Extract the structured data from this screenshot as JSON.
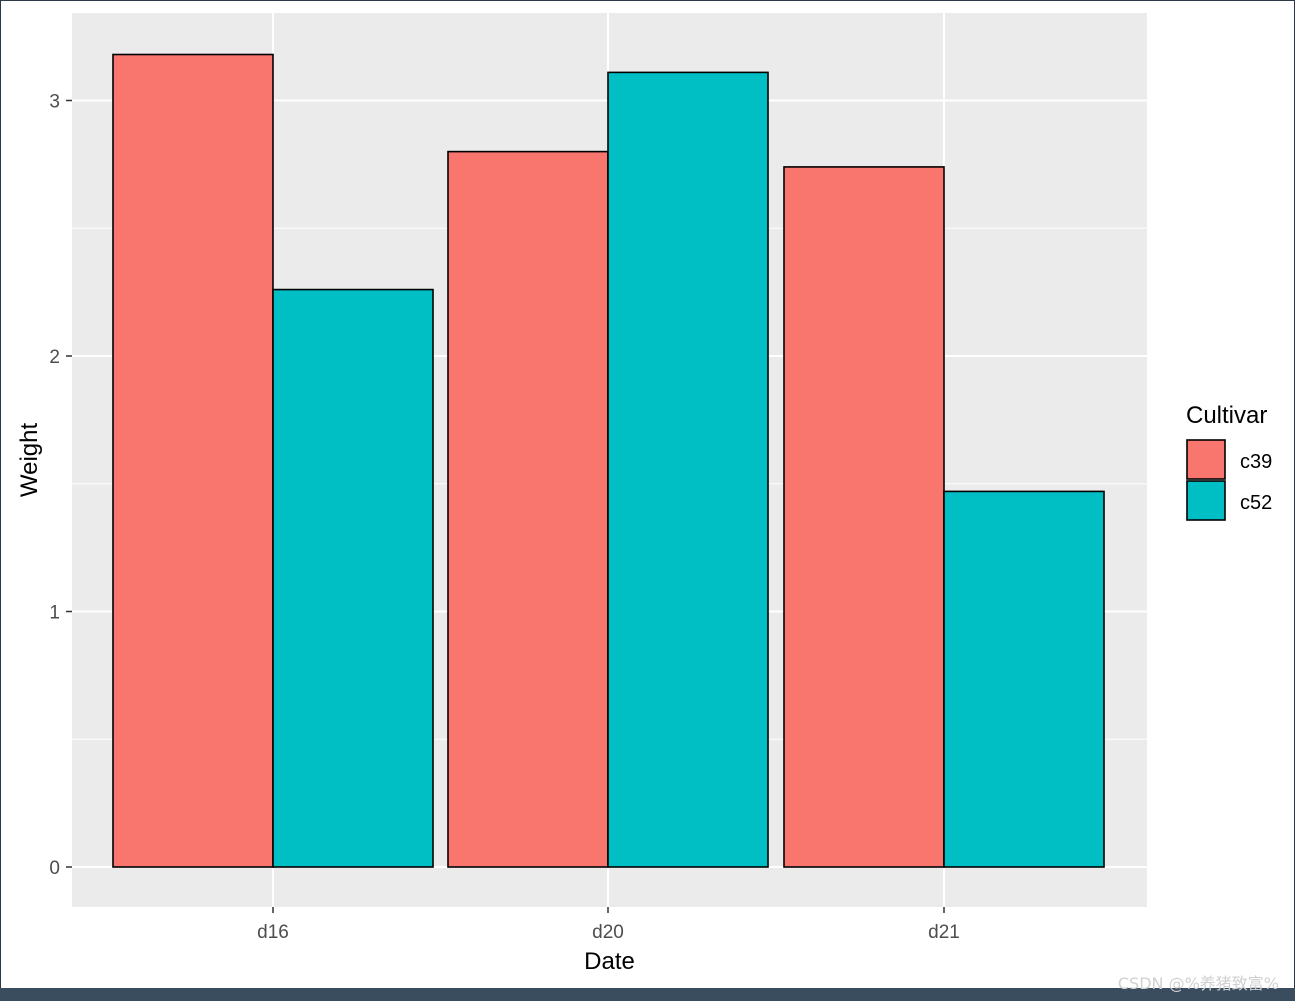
{
  "colors": {
    "panel_bg": "#EBEBEB",
    "grid": "#FFFFFF",
    "bar_outline": "#000000",
    "c39": "#F8766D",
    "c52": "#00BFC4"
  },
  "watermark": "CSDN @%养猪致富%",
  "chart_data": {
    "type": "bar",
    "categories": [
      "d16",
      "d20",
      "d21"
    ],
    "series": [
      {
        "name": "c39",
        "values": [
          3.18,
          2.8,
          2.74
        ]
      },
      {
        "name": "c52",
        "values": [
          2.26,
          3.11,
          1.47
        ]
      }
    ],
    "xlabel": "Date",
    "ylabel": "Weight",
    "ylim": [
      -0.16,
      3.35
    ],
    "yticks": [
      0,
      1,
      2,
      3
    ],
    "grid": true,
    "legend": {
      "title": "Cultivar",
      "position": "right"
    }
  }
}
